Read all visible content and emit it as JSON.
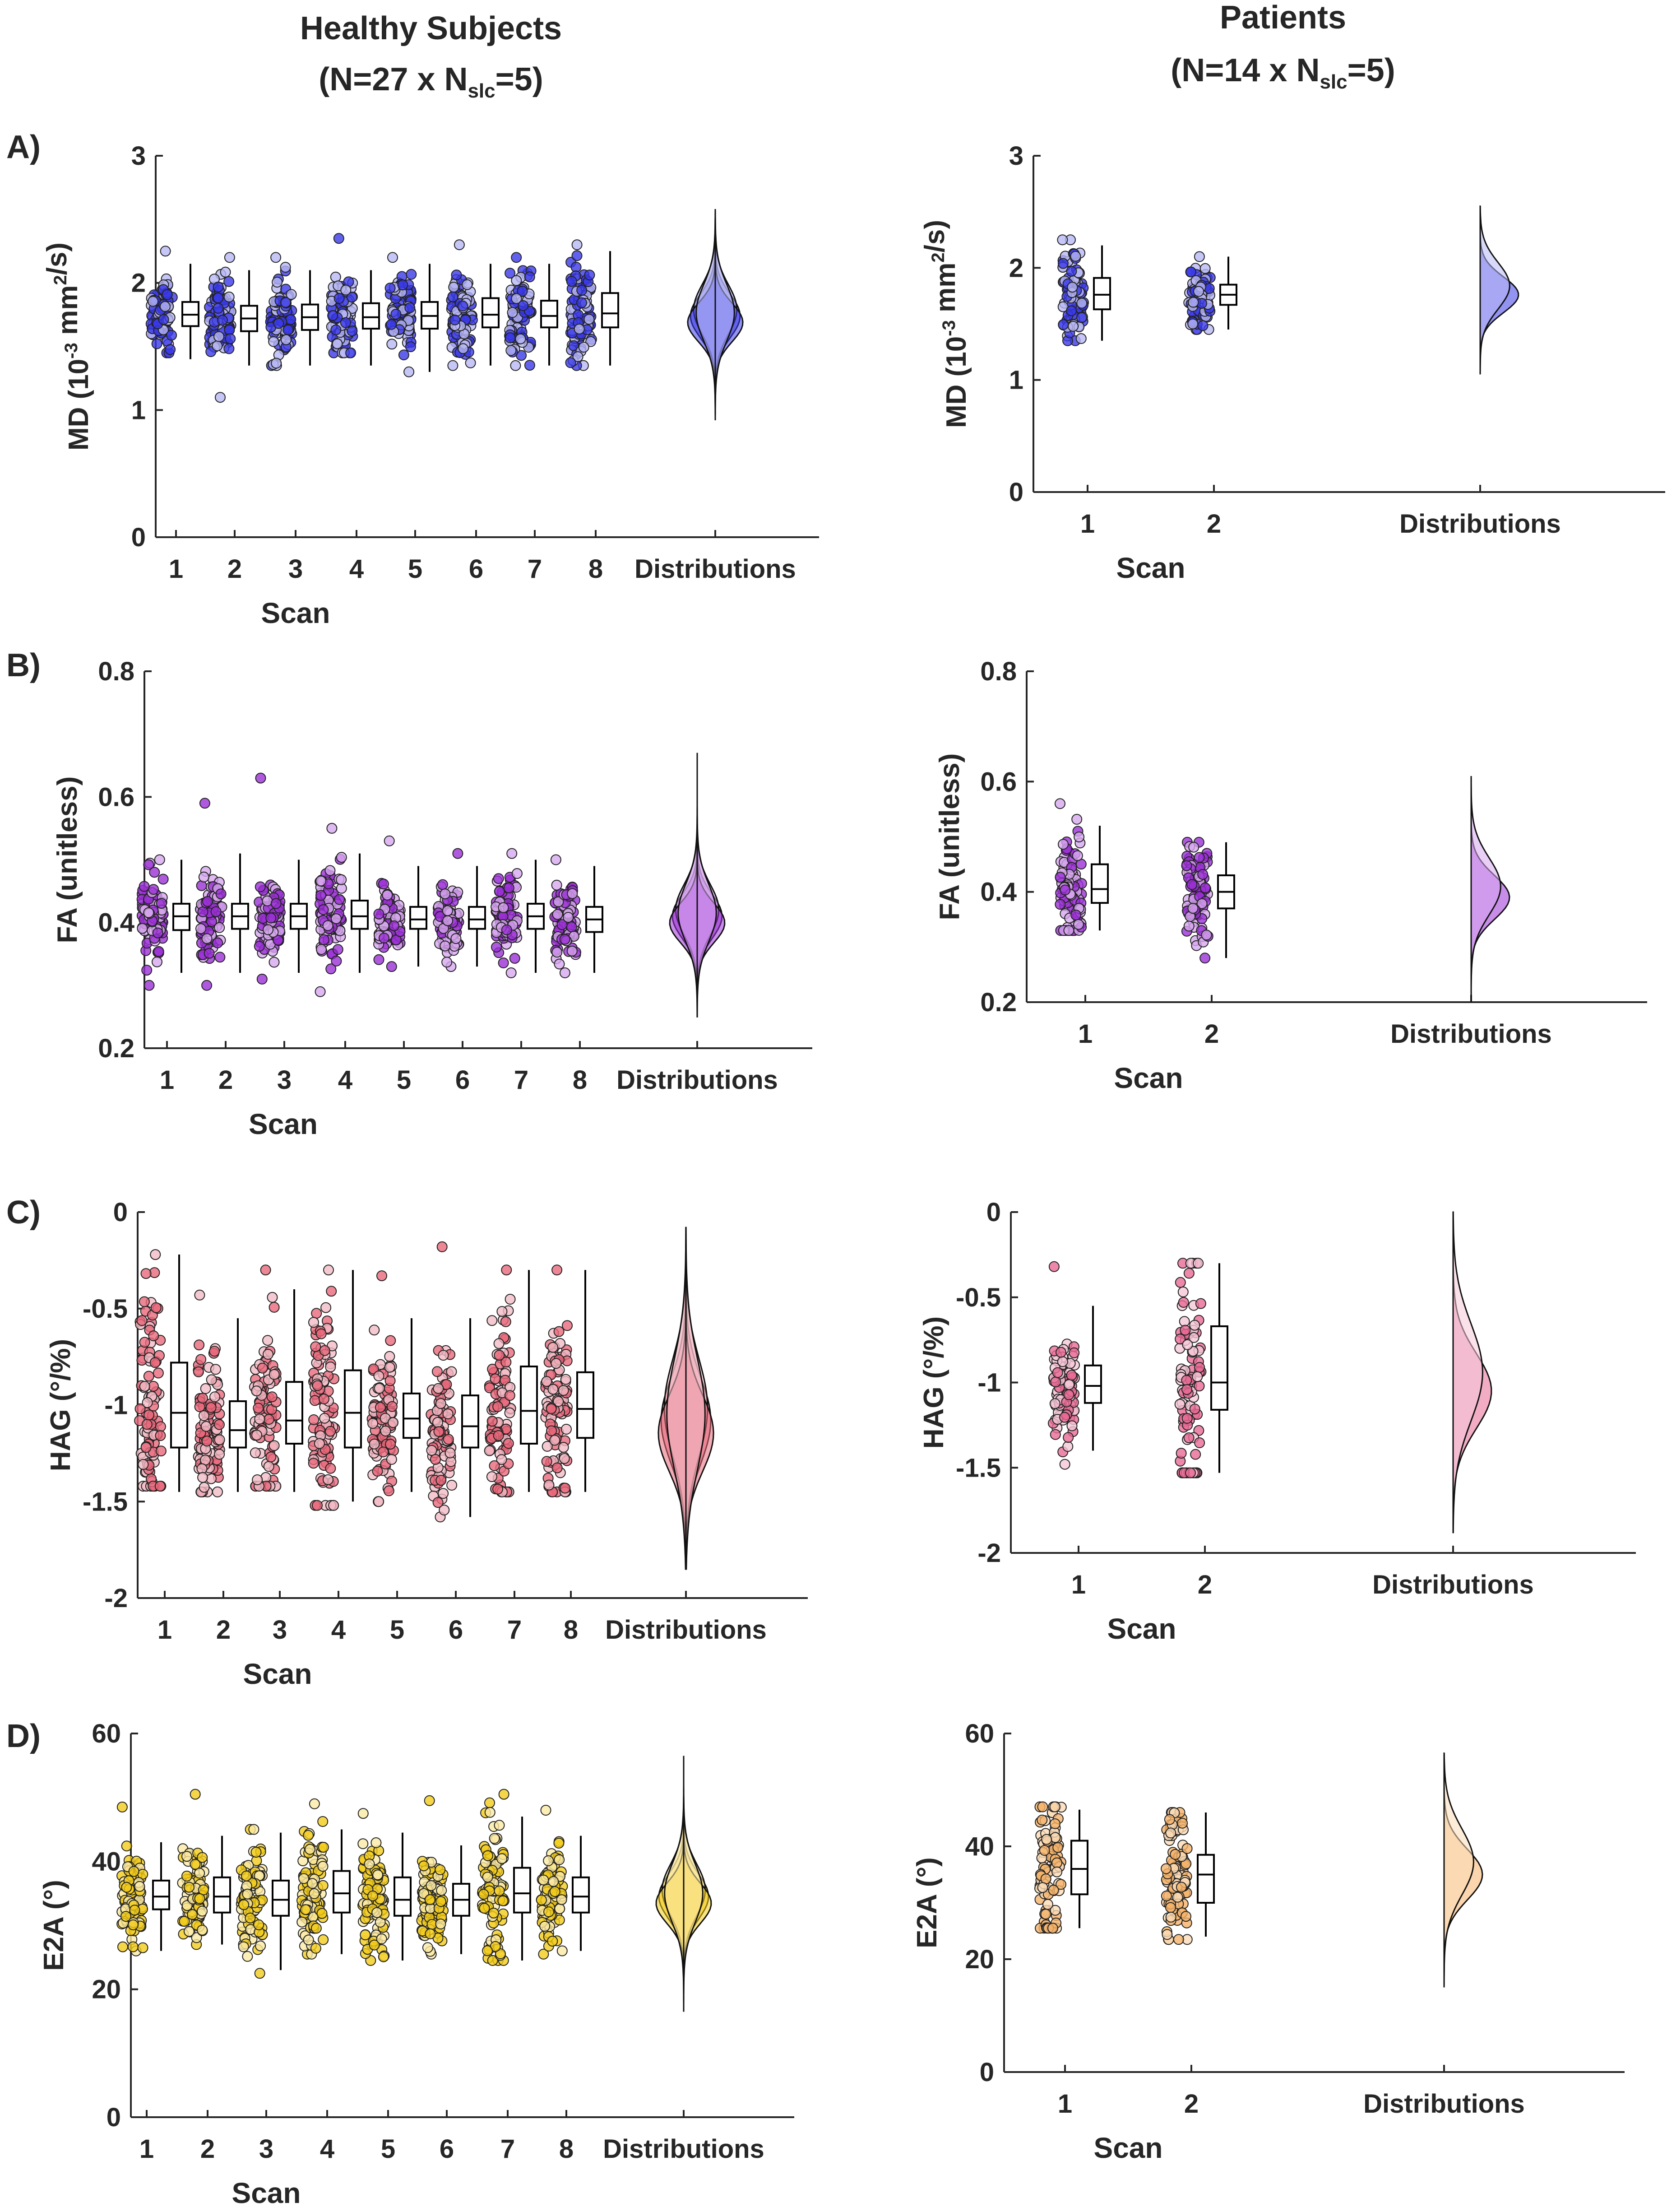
{
  "figure": {
    "col_titles": [
      {
        "main": "Healthy Subjects",
        "prefix": "(N=27 x N",
        "sub": "slc",
        "suffix": "=5)"
      },
      {
        "main": "Patients",
        "prefix": "(N=14 x N",
        "sub": "slc",
        "suffix": "=5)"
      }
    ],
    "row_labels": [
      "A)",
      "B)",
      "C)",
      "D)"
    ],
    "colors": {
      "axis": "#262626",
      "box": "#000000"
    }
  },
  "chart_data": [
    {
      "id": "A-healthy",
      "type": "raincloud",
      "row": "A)",
      "group": "Healthy Subjects",
      "ylabel": "MD (10^-3 mm^2/s)",
      "xlabel": "Scan",
      "ylim": [
        0,
        3
      ],
      "yticks": [
        0,
        1,
        2,
        3
      ],
      "categories": [
        "1",
        "2",
        "3",
        "4",
        "5",
        "6",
        "7",
        "8",
        "Distributions"
      ],
      "color": "#3a3ae8",
      "light": "#b8b8f5",
      "boxes": [
        {
          "q1": 1.66,
          "median": 1.75,
          "q3": 1.85,
          "whisker_low": 1.4,
          "whisker_high": 2.15,
          "y_min": 1.45,
          "y_max": 2.25
        },
        {
          "q1": 1.62,
          "median": 1.72,
          "q3": 1.82,
          "whisker_low": 1.35,
          "whisker_high": 2.1,
          "y_min": 1.1,
          "y_max": 2.2
        },
        {
          "q1": 1.63,
          "median": 1.73,
          "q3": 1.83,
          "whisker_low": 1.35,
          "whisker_high": 2.1,
          "y_min": 1.35,
          "y_max": 2.2
        },
        {
          "q1": 1.64,
          "median": 1.73,
          "q3": 1.84,
          "whisker_low": 1.35,
          "whisker_high": 2.1,
          "y_min": 1.45,
          "y_max": 2.35
        },
        {
          "q1": 1.64,
          "median": 1.74,
          "q3": 1.85,
          "whisker_low": 1.3,
          "whisker_high": 2.15,
          "y_min": 1.3,
          "y_max": 2.2
        },
        {
          "q1": 1.65,
          "median": 1.75,
          "q3": 1.88,
          "whisker_low": 1.35,
          "whisker_high": 2.15,
          "y_min": 1.35,
          "y_max": 2.3
        },
        {
          "q1": 1.65,
          "median": 1.74,
          "q3": 1.86,
          "whisker_low": 1.35,
          "whisker_high": 2.15,
          "y_min": 1.35,
          "y_max": 2.2
        },
        {
          "q1": 1.65,
          "median": 1.76,
          "q3": 1.92,
          "whisker_low": 1.35,
          "whisker_high": 2.25,
          "y_min": 1.35,
          "y_max": 2.3
        }
      ],
      "violin": {
        "min": 0.92,
        "max": 2.58,
        "center": 1.74,
        "spread": 0.17
      }
    },
    {
      "id": "A-patients",
      "type": "raincloud",
      "row": "A)",
      "group": "Patients",
      "ylabel": "MD (10^-3 mm^2/s)",
      "xlabel": "Scan",
      "ylim": [
        0,
        3
      ],
      "yticks": [
        0,
        1,
        2,
        3
      ],
      "categories": [
        "1",
        "2",
        "Distributions"
      ],
      "color": "#3a3ae8",
      "light": "#b8b8f5",
      "boxes": [
        {
          "q1": 1.63,
          "median": 1.76,
          "q3": 1.91,
          "whisker_low": 1.35,
          "whisker_high": 2.2,
          "y_min": 1.35,
          "y_max": 2.25
        },
        {
          "q1": 1.67,
          "median": 1.76,
          "q3": 1.85,
          "whisker_low": 1.45,
          "whisker_high": 2.1,
          "y_min": 1.45,
          "y_max": 2.1
        }
      ],
      "violin": {
        "min": 1.05,
        "max": 2.55,
        "center": 1.76,
        "spread": 0.16
      }
    },
    {
      "id": "B-healthy",
      "type": "raincloud",
      "row": "B)",
      "group": "Healthy Subjects",
      "ylabel": "FA (unitless)",
      "xlabel": "Scan",
      "ylim": [
        0.2,
        0.8
      ],
      "yticks": [
        0.2,
        0.4,
        0.6,
        0.8
      ],
      "categories": [
        "1",
        "2",
        "3",
        "4",
        "5",
        "6",
        "7",
        "8",
        "Distributions"
      ],
      "color": "#9b2fd6",
      "light": "#d7a8ef",
      "boxes": [
        {
          "q1": 0.388,
          "median": 0.41,
          "q3": 0.43,
          "whisker_low": 0.32,
          "whisker_high": 0.5,
          "y_min": 0.3,
          "y_max": 0.5
        },
        {
          "q1": 0.39,
          "median": 0.41,
          "q3": 0.43,
          "whisker_low": 0.32,
          "whisker_high": 0.51,
          "y_min": 0.3,
          "y_max": 0.59
        },
        {
          "q1": 0.39,
          "median": 0.41,
          "q3": 0.43,
          "whisker_low": 0.32,
          "whisker_high": 0.5,
          "y_min": 0.31,
          "y_max": 0.63
        },
        {
          "q1": 0.39,
          "median": 0.41,
          "q3": 0.435,
          "whisker_low": 0.32,
          "whisker_high": 0.51,
          "y_min": 0.29,
          "y_max": 0.55
        },
        {
          "q1": 0.39,
          "median": 0.405,
          "q3": 0.425,
          "whisker_low": 0.33,
          "whisker_high": 0.49,
          "y_min": 0.33,
          "y_max": 0.53
        },
        {
          "q1": 0.39,
          "median": 0.405,
          "q3": 0.425,
          "whisker_low": 0.33,
          "whisker_high": 0.49,
          "y_min": 0.33,
          "y_max": 0.51
        },
        {
          "q1": 0.39,
          "median": 0.41,
          "q3": 0.43,
          "whisker_low": 0.32,
          "whisker_high": 0.5,
          "y_min": 0.32,
          "y_max": 0.51
        },
        {
          "q1": 0.385,
          "median": 0.405,
          "q3": 0.425,
          "whisker_low": 0.32,
          "whisker_high": 0.49,
          "y_min": 0.32,
          "y_max": 0.5
        }
      ],
      "violin": {
        "min": 0.25,
        "max": 0.67,
        "center": 0.41,
        "spread": 0.035
      }
    },
    {
      "id": "B-patients",
      "type": "raincloud",
      "row": "B)",
      "group": "Patients",
      "ylabel": "FA (unitless)",
      "xlabel": "Scan",
      "ylim": [
        0.2,
        0.8
      ],
      "yticks": [
        0.2,
        0.4,
        0.6,
        0.8
      ],
      "categories": [
        "1",
        "2",
        "Distributions"
      ],
      "color": "#9b2fd6",
      "light": "#d7a8ef",
      "boxes": [
        {
          "q1": 0.38,
          "median": 0.405,
          "q3": 0.45,
          "whisker_low": 0.33,
          "whisker_high": 0.52,
          "y_min": 0.33,
          "y_max": 0.56
        },
        {
          "q1": 0.37,
          "median": 0.4,
          "q3": 0.43,
          "whisker_low": 0.28,
          "whisker_high": 0.49,
          "y_min": 0.28,
          "y_max": 0.49
        }
      ],
      "violin": {
        "min": 0.2,
        "max": 0.61,
        "center": 0.39,
        "spread": 0.04
      }
    },
    {
      "id": "C-healthy",
      "type": "raincloud",
      "row": "C)",
      "group": "Healthy Subjects",
      "ylabel": "HAG (°/%)",
      "xlabel": "Scan",
      "ylim": [
        -2,
        0
      ],
      "yticks": [
        -2,
        -1.5,
        -1,
        -0.5,
        0
      ],
      "categories": [
        "1",
        "2",
        "3",
        "4",
        "5",
        "6",
        "7",
        "8",
        "Distributions"
      ],
      "color": "#e8687a",
      "light": "#f3bcc6",
      "boxes": [
        {
          "q1": -1.22,
          "median": -1.04,
          "q3": -0.78,
          "whisker_low": -1.45,
          "whisker_high": -0.22,
          "y_min": -1.42,
          "y_max": -0.22
        },
        {
          "q1": -1.22,
          "median": -1.13,
          "q3": -0.98,
          "whisker_low": -1.45,
          "whisker_high": -0.55,
          "y_min": -1.45,
          "y_max": -0.43
        },
        {
          "q1": -1.2,
          "median": -1.08,
          "q3": -0.88,
          "whisker_low": -1.45,
          "whisker_high": -0.4,
          "y_min": -1.42,
          "y_max": -0.3
        },
        {
          "q1": -1.22,
          "median": -1.04,
          "q3": -0.82,
          "whisker_low": -1.5,
          "whisker_high": -0.3,
          "y_min": -1.52,
          "y_max": -0.3
        },
        {
          "q1": -1.17,
          "median": -1.07,
          "q3": -0.94,
          "whisker_low": -1.45,
          "whisker_high": -0.55,
          "y_min": -1.5,
          "y_max": -0.33
        },
        {
          "q1": -1.22,
          "median": -1.11,
          "q3": -0.95,
          "whisker_low": -1.58,
          "whisker_high": -0.55,
          "y_min": -1.58,
          "y_max": -0.18
        },
        {
          "q1": -1.2,
          "median": -1.03,
          "q3": -0.8,
          "whisker_low": -1.45,
          "whisker_high": -0.3,
          "y_min": -1.45,
          "y_max": -0.3
        },
        {
          "q1": -1.17,
          "median": -1.02,
          "q3": -0.83,
          "whisker_low": -1.45,
          "whisker_high": -0.3,
          "y_min": -1.45,
          "y_max": -0.3
        }
      ],
      "violin": {
        "min": -1.85,
        "max": -0.08,
        "center": -1.08,
        "spread": 0.22
      }
    },
    {
      "id": "C-patients",
      "type": "raincloud",
      "row": "C)",
      "group": "Patients",
      "ylabel": "HAG (°/%)",
      "xlabel": "Scan",
      "ylim": [
        -2,
        0
      ],
      "yticks": [
        -2,
        -1.5,
        -1,
        -0.5,
        0
      ],
      "categories": [
        "1",
        "2",
        "Distributions"
      ],
      "color": "#e86a95",
      "light": "#f5c8d8",
      "boxes": [
        {
          "q1": -1.12,
          "median": -1.02,
          "q3": -0.9,
          "whisker_low": -1.4,
          "whisker_high": -0.55,
          "y_min": -1.48,
          "y_max": -0.32
        },
        {
          "q1": -1.16,
          "median": -1.0,
          "q3": -0.67,
          "whisker_low": -1.53,
          "whisker_high": -0.3,
          "y_min": -1.53,
          "y_max": -0.3
        }
      ],
      "violin": {
        "min": -1.88,
        "max": 0.0,
        "center": -1.05,
        "spread": 0.22
      }
    },
    {
      "id": "D-healthy",
      "type": "raincloud",
      "row": "D)",
      "group": "Healthy Subjects",
      "ylabel": "E2A (°)",
      "xlabel": "Scan",
      "ylim": [
        0,
        60
      ],
      "yticks": [
        0,
        20,
        40,
        60
      ],
      "categories": [
        "1",
        "2",
        "3",
        "4",
        "5",
        "6",
        "7",
        "8",
        "Distributions"
      ],
      "color": "#f2cc1a",
      "light": "#fbeaa5",
      "boxes": [
        {
          "q1": 32.5,
          "median": 34.5,
          "q3": 37.0,
          "whisker_low": 26.0,
          "whisker_high": 43.0,
          "y_min": 26.0,
          "y_max": 48.5
        },
        {
          "q1": 32.0,
          "median": 34.5,
          "q3": 37.5,
          "whisker_low": 27.0,
          "whisker_high": 44.0,
          "y_min": 27.0,
          "y_max": 50.5
        },
        {
          "q1": 31.5,
          "median": 34.0,
          "q3": 37.0,
          "whisker_low": 23.0,
          "whisker_high": 44.5,
          "y_min": 22.5,
          "y_max": 45.0
        },
        {
          "q1": 32.0,
          "median": 35.0,
          "q3": 38.5,
          "whisker_low": 25.5,
          "whisker_high": 45.0,
          "y_min": 25.5,
          "y_max": 49.0
        },
        {
          "q1": 31.5,
          "median": 34.0,
          "q3": 37.5,
          "whisker_low": 24.5,
          "whisker_high": 44.5,
          "y_min": 24.5,
          "y_max": 47.5
        },
        {
          "q1": 31.5,
          "median": 34.0,
          "q3": 36.5,
          "whisker_low": 25.5,
          "whisker_high": 42.5,
          "y_min": 25.5,
          "y_max": 49.5
        },
        {
          "q1": 32.0,
          "median": 35.0,
          "q3": 39.0,
          "whisker_low": 24.5,
          "whisker_high": 47.0,
          "y_min": 24.5,
          "y_max": 50.5
        },
        {
          "q1": 32.0,
          "median": 34.5,
          "q3": 37.5,
          "whisker_low": 26.0,
          "whisker_high": 44.0,
          "y_min": 25.5,
          "y_max": 48.0
        }
      ],
      "violin": {
        "min": 16.5,
        "max": 56.5,
        "center": 34.5,
        "spread": 3.5
      }
    },
    {
      "id": "D-patients",
      "type": "raincloud",
      "row": "D)",
      "group": "Patients",
      "ylabel": "E2A (°)",
      "xlabel": "Scan",
      "ylim": [
        0,
        60
      ],
      "yticks": [
        0,
        20,
        40,
        60
      ],
      "categories": [
        "1",
        "2",
        "Distributions"
      ],
      "color": "#f5b36a",
      "light": "#fbdcb8",
      "boxes": [
        {
          "q1": 31.5,
          "median": 36.0,
          "q3": 41.0,
          "whisker_low": 25.5,
          "whisker_high": 46.5,
          "y_min": 25.5,
          "y_max": 47.0
        },
        {
          "q1": 30.0,
          "median": 35.0,
          "q3": 38.5,
          "whisker_low": 24.0,
          "whisker_high": 46.0,
          "y_min": 23.5,
          "y_max": 46.0
        }
      ],
      "violin": {
        "min": 15.0,
        "max": 56.5,
        "center": 35.0,
        "spread": 4.5
      }
    }
  ]
}
